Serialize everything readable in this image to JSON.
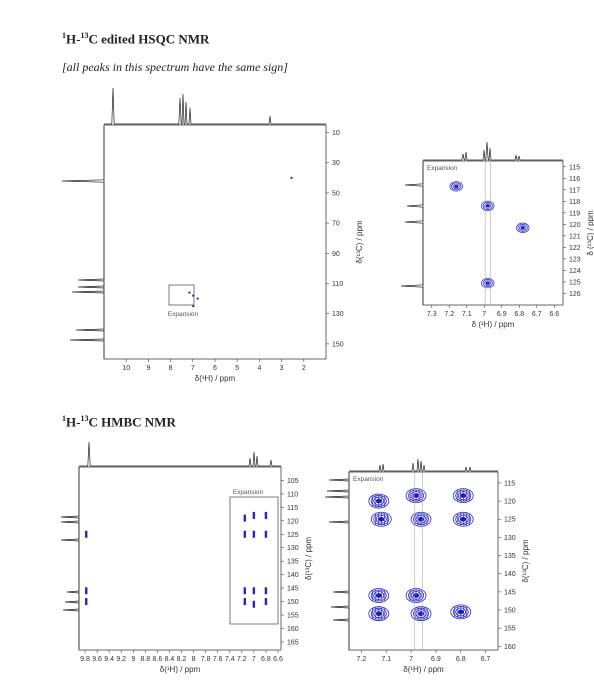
{
  "headings": {
    "hsqc_pre": "1",
    "hsqc_mid1": "H-",
    "hsqc_sup2": "13",
    "hsqc_rest": "C edited HSQC NMR",
    "hsqc_note": "[all peaks in this spectrum have the same sign]",
    "hmbc_pre": "1",
    "hmbc_mid1": "H-",
    "hmbc_sup2": "13",
    "hmbc_rest": "C HMBC NMR"
  },
  "chart_data": [
    {
      "id": "hsqc_full",
      "type": "scatter",
      "xlabel": "δ(¹H) / ppm",
      "ylabel": "δ(¹³C) / ppm",
      "xlim": [
        11,
        1
      ],
      "ylim": [
        5,
        160
      ],
      "xticks": [
        10,
        9,
        8,
        7,
        6,
        5,
        4,
        3,
        2
      ],
      "yticks": [
        10,
        30,
        50,
        70,
        90,
        110,
        130,
        150
      ],
      "annotation": "Expansion",
      "points": [
        {
          "x": 2.55,
          "y": 40
        },
        {
          "x": 7.15,
          "y": 116
        },
        {
          "x": 6.98,
          "y": 118
        },
        {
          "x": 6.78,
          "y": 120
        },
        {
          "x": 6.98,
          "y": 125
        }
      ]
    },
    {
      "id": "hsqc_expansion",
      "type": "scatter",
      "xlabel": "δ (¹H) / ppm",
      "ylabel": "δ (¹³C) / ppm",
      "title": "Expansion",
      "xlim": [
        7.35,
        6.55
      ],
      "ylim": [
        114.5,
        127
      ],
      "xticks": [
        7.3,
        7.2,
        7.1,
        7.0,
        6.9,
        6.8,
        6.7,
        6.6
      ],
      "yticks": [
        115,
        116,
        117,
        118,
        119,
        120,
        121,
        122,
        123,
        124,
        125,
        126
      ],
      "points": [
        {
          "x": 7.16,
          "y": 116.7
        },
        {
          "x": 6.98,
          "y": 118.4
        },
        {
          "x": 6.78,
          "y": 120.3
        },
        {
          "x": 6.98,
          "y": 125.1
        }
      ]
    },
    {
      "id": "hmbc_full",
      "type": "scatter",
      "xlabel": "δ(¹H) / ppm",
      "ylabel": "δ(¹³C) / ppm",
      "annotation": "Expansion",
      "xlim": [
        9.9,
        6.55
      ],
      "ylim": [
        100,
        168
      ],
      "xticks": [
        9.8,
        9.6,
        9.4,
        9.2,
        9.0,
        8.8,
        8.6,
        8.4,
        8.2,
        8.0,
        7.8,
        7.6,
        7.4,
        7.2,
        7.0,
        6.8,
        6.6
      ],
      "yticks": [
        105,
        110,
        115,
        120,
        125,
        130,
        135,
        140,
        145,
        150,
        155,
        160,
        165
      ],
      "points": [
        {
          "x": 9.78,
          "y": 125
        },
        {
          "x": 9.78,
          "y": 146
        },
        {
          "x": 9.78,
          "y": 150
        },
        {
          "x": 7.15,
          "y": 119
        },
        {
          "x": 7.0,
          "y": 118
        },
        {
          "x": 6.8,
          "y": 118
        },
        {
          "x": 7.15,
          "y": 125
        },
        {
          "x": 7.0,
          "y": 125
        },
        {
          "x": 6.8,
          "y": 125
        },
        {
          "x": 7.15,
          "y": 146
        },
        {
          "x": 7.0,
          "y": 146
        },
        {
          "x": 6.8,
          "y": 146
        },
        {
          "x": 7.15,
          "y": 150
        },
        {
          "x": 7.0,
          "y": 151
        },
        {
          "x": 6.8,
          "y": 150
        }
      ]
    },
    {
      "id": "hmbc_expansion",
      "type": "scatter",
      "xlabel": "δ(¹H) / ppm",
      "ylabel": "δ(¹³C) / ppm",
      "title": "Expansion",
      "xlim": [
        7.25,
        6.65
      ],
      "ylim": [
        112,
        161
      ],
      "xticks": [
        7.2,
        7.1,
        7.0,
        6.9,
        6.8,
        6.7
      ],
      "yticks": [
        115,
        120,
        125,
        130,
        135,
        140,
        145,
        150,
        155,
        160
      ],
      "points": [
        {
          "x": 7.13,
          "y": 120
        },
        {
          "x": 6.98,
          "y": 118.5
        },
        {
          "x": 6.79,
          "y": 118.5
        },
        {
          "x": 7.12,
          "y": 125
        },
        {
          "x": 6.96,
          "y": 125
        },
        {
          "x": 6.79,
          "y": 125
        },
        {
          "x": 7.13,
          "y": 146
        },
        {
          "x": 6.98,
          "y": 146
        },
        {
          "x": 6.8,
          "y": 150.5
        },
        {
          "x": 7.13,
          "y": 151
        },
        {
          "x": 6.96,
          "y": 151
        }
      ]
    }
  ]
}
